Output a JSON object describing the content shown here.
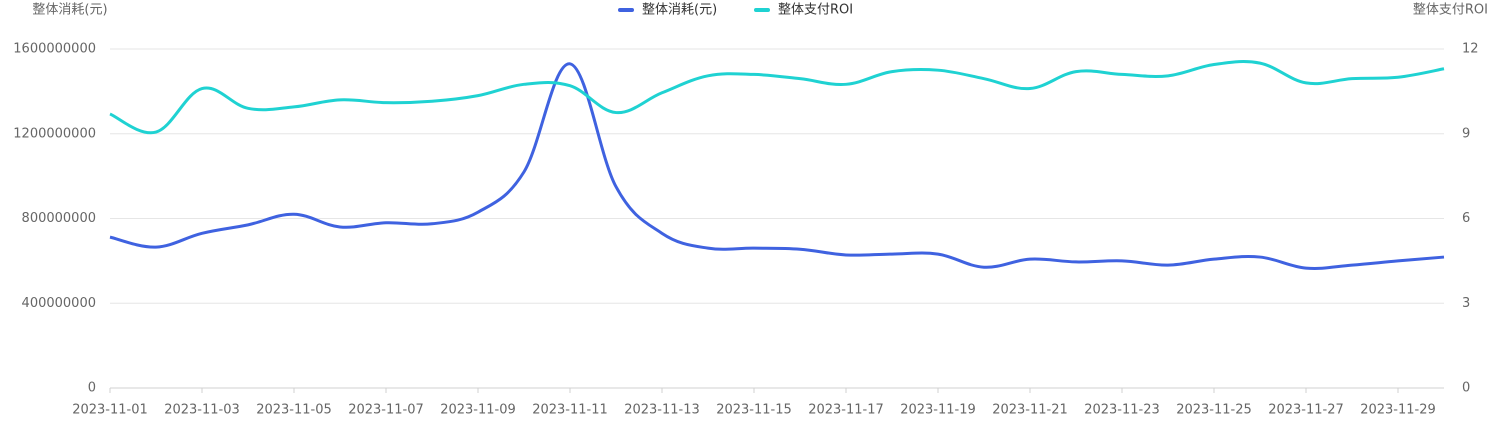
{
  "chart_data": {
    "type": "line",
    "y_label": "整体消耗(元)",
    "y2_label": "整体支付ROI",
    "categories": [
      "2023-11-01",
      null,
      "2023-11-03",
      null,
      "2023-11-05",
      null,
      "2023-11-07",
      null,
      "2023-11-09",
      null,
      "2023-11-11",
      null,
      "2023-11-13",
      null,
      "2023-11-15",
      null,
      "2023-11-17",
      null,
      "2023-11-19",
      null,
      "2023-11-21",
      null,
      "2023-11-23",
      null,
      "2023-11-25",
      null,
      "2023-11-27",
      null,
      "2023-11-29",
      null
    ],
    "series": [
      {
        "name": "整体消耗(元)",
        "color": "#3f62e0",
        "values": [
          712000000,
          665000000,
          730000000,
          770000000,
          820000000,
          760000000,
          780000000,
          775000000,
          830000000,
          1020000000,
          1530000000,
          950000000,
          730000000,
          660000000,
          660000000,
          655000000,
          628000000,
          632000000,
          632000000,
          570000000,
          608000000,
          595000000,
          600000000,
          580000000,
          608000000,
          618000000,
          566000000,
          580000000,
          600000000,
          618000000
        ]
      },
      {
        "name": "整体支付ROI",
        "color": "#1fd2d2",
        "axis": "y2",
        "values": [
          9.7,
          9.06,
          10.6,
          9.9,
          9.95,
          10.2,
          10.1,
          10.15,
          10.35,
          10.75,
          10.7,
          9.75,
          10.45,
          11.05,
          11.1,
          10.95,
          10.75,
          11.2,
          11.25,
          10.95,
          10.6,
          11.2,
          11.1,
          11.05,
          11.45,
          11.5,
          10.8,
          10.95,
          11.0,
          11.3
        ]
      }
    ],
    "ylim": [
      0,
      1600000000
    ],
    "yticks": [
      0,
      400000000,
      800000000,
      1200000000,
      1600000000
    ],
    "y2lim": [
      0,
      12
    ],
    "y2ticks": [
      0,
      3,
      6,
      9,
      12
    ],
    "grid": true,
    "legend": "top"
  }
}
